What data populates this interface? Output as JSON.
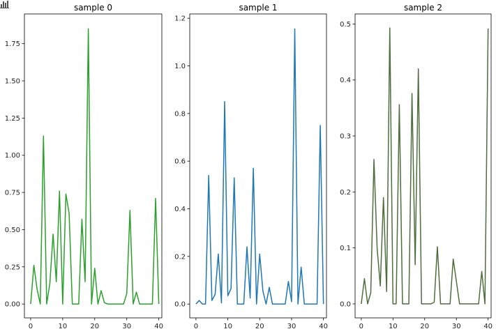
{
  "chart_data": [
    {
      "type": "line",
      "title": "sample 0",
      "xlabel": "",
      "ylabel": "",
      "color": "#2ca02c",
      "xlim": [
        -1.95,
        40.95
      ],
      "ylim": [
        -0.093,
        1.95
      ],
      "xticks": [
        0,
        10,
        20,
        30,
        40
      ],
      "xtick_labels": [
        "0",
        "10",
        "20",
        "30",
        "40"
      ],
      "yticks": [
        0.0,
        0.25,
        0.5,
        0.75,
        1.0,
        1.25,
        1.5,
        1.75
      ],
      "ytick_labels": [
        "0.00",
        "0.25",
        "0.50",
        "0.75",
        "1.00",
        "1.25",
        "1.50",
        "1.75"
      ],
      "grid": false,
      "x": [
        0,
        1,
        2,
        3,
        4,
        5,
        6,
        7,
        8,
        9,
        10,
        11,
        12,
        13,
        14,
        15,
        16,
        17,
        18,
        19,
        20,
        21,
        22,
        23,
        24,
        25,
        26,
        27,
        28,
        29,
        30,
        31,
        32,
        33,
        34,
        35,
        36,
        37,
        38,
        39,
        40
      ],
      "values": [
        0.0,
        0.26,
        0.1,
        0.0,
        1.13,
        0.0,
        0.14,
        0.47,
        0.15,
        0.76,
        0.0,
        0.74,
        0.61,
        0.0,
        0.0,
        0.0,
        0.57,
        0.15,
        1.85,
        0.0,
        0.24,
        0.0,
        0.09,
        0.01,
        0.0,
        0.0,
        0.0,
        0.0,
        0.0,
        0.0,
        0.07,
        0.63,
        0.0,
        0.08,
        0.0,
        0.0,
        0.0,
        0.0,
        0.0,
        0.71,
        0.0
      ]
    },
    {
      "type": "line",
      "title": "sample 1",
      "xlabel": "",
      "ylabel": "",
      "color": "#1f77b4",
      "xlim": [
        -1.95,
        40.95
      ],
      "ylim": [
        -0.058,
        1.218
      ],
      "xticks": [
        0,
        10,
        20,
        30,
        40
      ],
      "xtick_labels": [
        "0",
        "10",
        "20",
        "30",
        "40"
      ],
      "yticks": [
        0.0,
        0.2,
        0.4,
        0.6,
        0.8,
        1.0,
        1.2
      ],
      "ytick_labels": [
        "0.0",
        "0.2",
        "0.4",
        "0.6",
        "0.8",
        "1.0",
        "1.2"
      ],
      "grid": false,
      "x": [
        0,
        1,
        2,
        3,
        4,
        5,
        6,
        7,
        8,
        9,
        10,
        11,
        12,
        13,
        14,
        15,
        16,
        17,
        18,
        19,
        20,
        21,
        22,
        23,
        24,
        25,
        26,
        27,
        28,
        29,
        30,
        31,
        32,
        33,
        34,
        35,
        36,
        37,
        38,
        39,
        40
      ],
      "values": [
        0.0,
        0.015,
        0.0,
        0.0,
        0.54,
        0.015,
        0.04,
        0.21,
        0.005,
        0.85,
        0.035,
        0.065,
        0.53,
        0.0,
        0.0,
        0.0,
        0.24,
        0.025,
        0.57,
        0.0,
        0.21,
        0.055,
        0.0,
        0.07,
        0.0,
        0.0,
        0.0,
        0.0,
        0.0,
        0.095,
        0.01,
        1.155,
        0.0,
        0.155,
        0.0,
        0.0,
        0.0,
        0.0,
        0.0,
        0.75,
        0.0
      ]
    },
    {
      "type": "line",
      "title": "sample 2",
      "xlabel": "",
      "ylabel": "",
      "color": "#4e6e3e",
      "xlim": [
        -1.95,
        40.95
      ],
      "ylim": [
        -0.025,
        0.518
      ],
      "xticks": [
        0,
        10,
        20,
        30,
        40
      ],
      "xtick_labels": [
        "0",
        "10",
        "20",
        "30",
        "40"
      ],
      "yticks": [
        0.0,
        0.1,
        0.2,
        0.3,
        0.4,
        0.5
      ],
      "ytick_labels": [
        "0.0",
        "0.1",
        "0.2",
        "0.3",
        "0.4",
        "0.5"
      ],
      "grid": false,
      "x": [
        0,
        1,
        2,
        3,
        4,
        5,
        6,
        7,
        8,
        9,
        10,
        11,
        12,
        13,
        14,
        15,
        16,
        17,
        18,
        19,
        20,
        21,
        22,
        23,
        24,
        25,
        26,
        27,
        28,
        29,
        30,
        31,
        32,
        33,
        34,
        35,
        36,
        37,
        38,
        39,
        40
      ],
      "values": [
        0.0,
        0.045,
        0.0,
        0.02,
        0.258,
        0.1,
        0.032,
        0.19,
        0.022,
        0.493,
        0.0,
        0.0,
        0.356,
        0.0,
        0.0,
        0.0,
        0.376,
        0.07,
        0.42,
        0.0,
        0.0,
        0.0,
        0.0,
        0.003,
        0.102,
        0.0,
        0.0,
        0.0,
        0.0,
        0.08,
        0.04,
        0.0,
        0.0,
        0.0,
        0.0,
        0.0,
        0.0,
        0.0,
        0.058,
        0.0,
        0.492
      ]
    }
  ]
}
